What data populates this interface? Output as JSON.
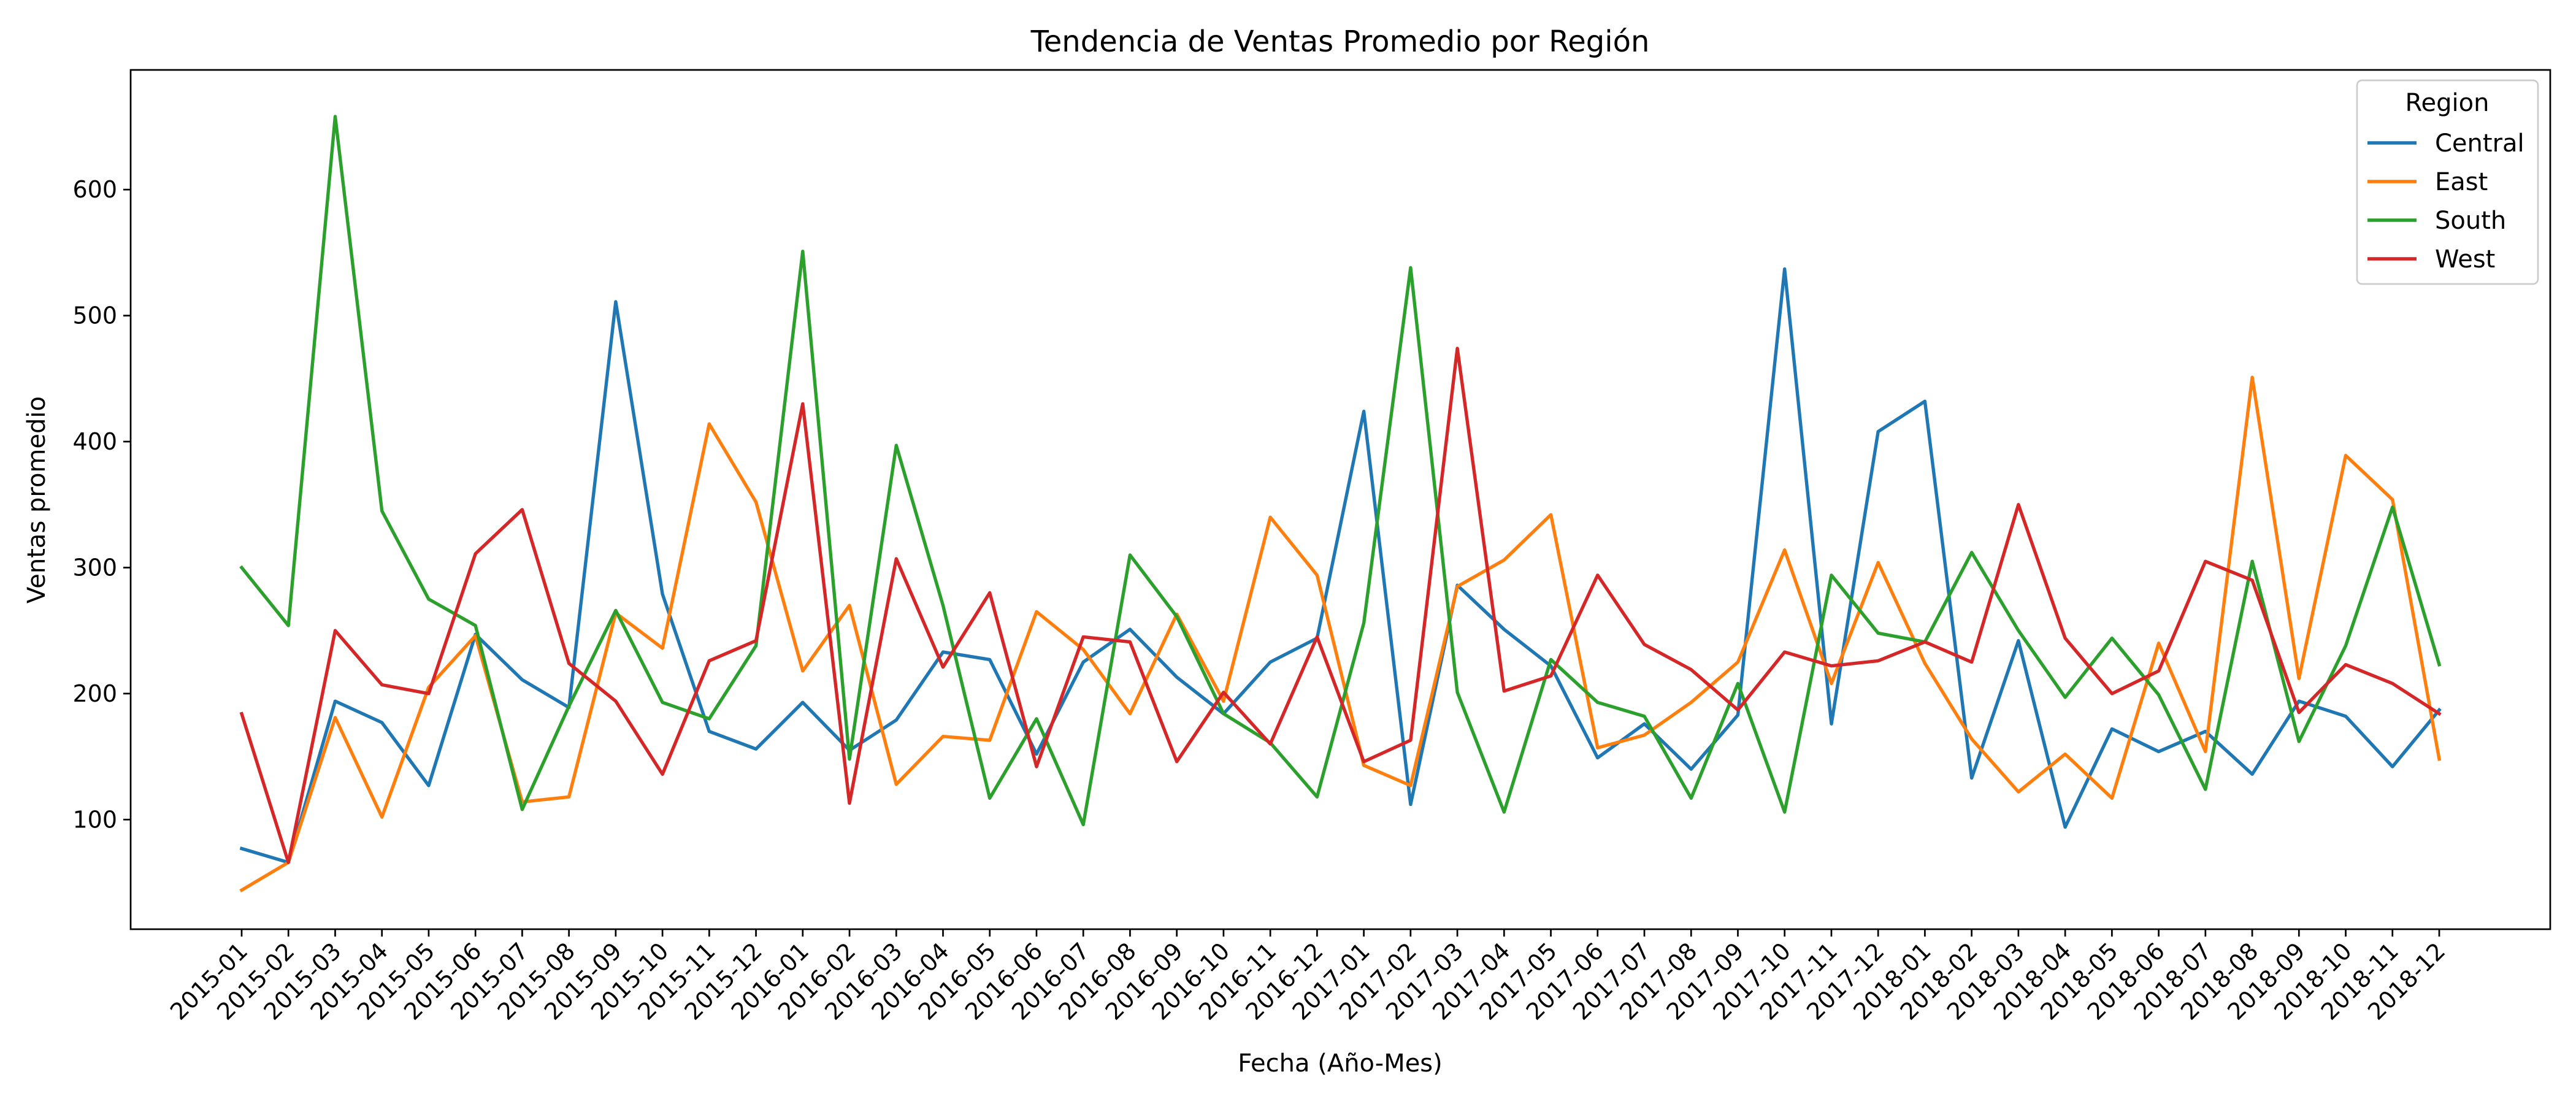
{
  "chart_data": {
    "type": "line",
    "title": "Tendencia de Ventas Promedio por Región",
    "xlabel": "Fecha (Año-Mes)",
    "ylabel": "Ventas promedio",
    "ylim": [
      13,
      695
    ],
    "yticks": [
      100,
      200,
      300,
      400,
      500,
      600
    ],
    "grid": false,
    "legend": {
      "title": "Region",
      "position": "top-right"
    },
    "categories": [
      "2015-01",
      "2015-02",
      "2015-03",
      "2015-04",
      "2015-05",
      "2015-06",
      "2015-07",
      "2015-08",
      "2015-09",
      "2015-10",
      "2015-11",
      "2015-12",
      "2016-01",
      "2016-02",
      "2016-03",
      "2016-04",
      "2016-05",
      "2016-06",
      "2016-07",
      "2016-08",
      "2016-09",
      "2016-10",
      "2016-11",
      "2016-12",
      "2017-01",
      "2017-02",
      "2017-03",
      "2017-04",
      "2017-05",
      "2017-06",
      "2017-07",
      "2017-08",
      "2017-09",
      "2017-10",
      "2017-11",
      "2017-12",
      "2018-01",
      "2018-02",
      "2018-03",
      "2018-04",
      "2018-05",
      "2018-06",
      "2018-07",
      "2018-08",
      "2018-09",
      "2018-10",
      "2018-11",
      "2018-12"
    ],
    "series": [
      {
        "name": "Central",
        "color": "#1f77b4",
        "values": [
          77,
          66,
          194,
          177,
          127,
          247,
          211,
          189,
          511,
          279,
          170,
          156,
          193,
          155,
          179,
          233,
          227,
          152,
          225,
          251,
          213,
          184,
          225,
          244,
          424,
          112,
          286,
          251,
          222,
          149,
          176,
          140,
          183,
          537,
          176,
          408,
          432,
          133,
          242,
          94,
          172,
          154,
          170,
          136,
          194,
          182,
          142,
          187
        ]
      },
      {
        "name": "East",
        "color": "#ff7f0e",
        "values": [
          44,
          66,
          181,
          102,
          205,
          246,
          114,
          118,
          264,
          236,
          414,
          352,
          218,
          270,
          128,
          166,
          163,
          265,
          235,
          184,
          263,
          194,
          340,
          294,
          143,
          127,
          285,
          306,
          342,
          157,
          167,
          193,
          225,
          314,
          208,
          304,
          224,
          164,
          122,
          152,
          117,
          240,
          154,
          451,
          212,
          389,
          354,
          148
        ]
      },
      {
        "name": "South",
        "color": "#2ca02c",
        "values": [
          300,
          254,
          658,
          345,
          275,
          254,
          108,
          190,
          266,
          193,
          180,
          238,
          551,
          148,
          397,
          270,
          117,
          180,
          96,
          310,
          261,
          184,
          161,
          118,
          256,
          538,
          201,
          106,
          227,
          193,
          182,
          117,
          208,
          106,
          294,
          248,
          241,
          312,
          250,
          197,
          244,
          199,
          124,
          305,
          162,
          238,
          348,
          223
        ]
      },
      {
        "name": "West",
        "color": "#d62728",
        "values": [
          184,
          66,
          250,
          207,
          200,
          311,
          346,
          224,
          194,
          136,
          226,
          242,
          430,
          113,
          307,
          221,
          280,
          142,
          245,
          241,
          146,
          201,
          160,
          245,
          146,
          163,
          474,
          202,
          214,
          294,
          239,
          219,
          187,
          233,
          222,
          226,
          241,
          225,
          350,
          244,
          200,
          218,
          305,
          290,
          185,
          223,
          208,
          184
        ]
      }
    ]
  }
}
